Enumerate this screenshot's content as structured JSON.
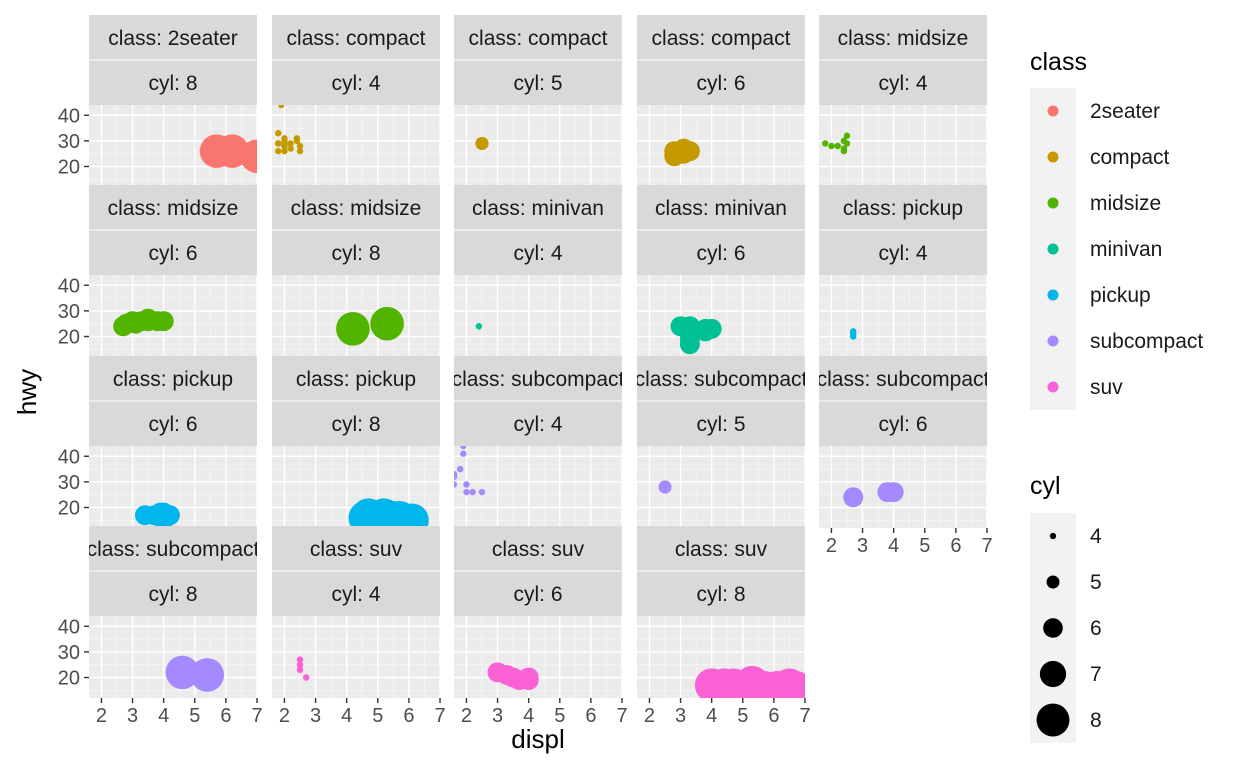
{
  "chart_data": {
    "type": "scatter",
    "facet_by": [
      "class",
      "cyl"
    ],
    "xlabel": "displ",
    "ylabel": "hwy",
    "xlim": [
      1.6,
      7.0
    ],
    "ylim": [
      12,
      44
    ],
    "x_ticks": [
      2,
      3,
      4,
      5,
      6,
      7
    ],
    "y_ticks": [
      20,
      30,
      40
    ],
    "legend_color": {
      "title": "class",
      "entries": [
        {
          "label": "2seater",
          "color": "#F8766D"
        },
        {
          "label": "compact",
          "color": "#C49A00"
        },
        {
          "label": "midsize",
          "color": "#53B400"
        },
        {
          "label": "minivan",
          "color": "#00C094"
        },
        {
          "label": "pickup",
          "color": "#00B6EB"
        },
        {
          "label": "subcompact",
          "color": "#A58AFF"
        },
        {
          "label": "suv",
          "color": "#FB61D7"
        }
      ]
    },
    "legend_size": {
      "title": "cyl",
      "entries": [
        {
          "label": "4",
          "value": 4
        },
        {
          "label": "5",
          "value": 5
        },
        {
          "label": "6",
          "value": 6
        },
        {
          "label": "7",
          "value": 7
        },
        {
          "label": "8",
          "value": 8
        }
      ]
    },
    "panels": [
      {
        "strip_class": "class: 2seater",
        "strip_cyl": "cyl: 8",
        "class": "2seater",
        "cyl": 8,
        "points": [
          [
            5.7,
            26
          ],
          [
            6.2,
            26
          ],
          [
            7.0,
            24
          ]
        ]
      },
      {
        "strip_class": "class: compact",
        "strip_cyl": "cyl: 4",
        "class": "compact",
        "cyl": 4,
        "points": [
          [
            1.8,
            29
          ],
          [
            1.8,
            29
          ],
          [
            2.0,
            31
          ],
          [
            2.0,
            30
          ],
          [
            1.8,
            26
          ],
          [
            2.0,
            28
          ],
          [
            2.0,
            29
          ],
          [
            2.2,
            27
          ],
          [
            2.2,
            29
          ],
          [
            2.4,
            31
          ],
          [
            2.4,
            30
          ],
          [
            1.9,
            44
          ],
          [
            2.0,
            29
          ],
          [
            2.0,
            26
          ],
          [
            2.5,
            26
          ],
          [
            2.5,
            28
          ],
          [
            1.8,
            33
          ],
          [
            1.8,
            29
          ],
          [
            2.0,
            28
          ]
        ]
      },
      {
        "strip_class": "class: compact",
        "strip_cyl": "cyl: 5",
        "class": "compact",
        "cyl": 5,
        "points": [
          [
            2.5,
            29
          ]
        ]
      },
      {
        "strip_class": "class: compact",
        "strip_cyl": "cyl: 6",
        "class": "compact",
        "cyl": 6,
        "points": [
          [
            2.8,
            26
          ],
          [
            3.1,
            27
          ],
          [
            3.0,
            26
          ],
          [
            3.3,
            26
          ],
          [
            2.8,
            24
          ],
          [
            3.1,
            25
          ]
        ]
      },
      {
        "strip_class": "class: midsize",
        "strip_cyl": "cyl: 4",
        "class": "midsize",
        "cyl": 4,
        "points": [
          [
            1.8,
            29
          ],
          [
            2.0,
            28
          ],
          [
            2.4,
            27
          ],
          [
            2.4,
            30
          ],
          [
            2.5,
            32
          ],
          [
            2.2,
            28
          ],
          [
            2.4,
            26
          ],
          [
            2.5,
            29
          ]
        ]
      },
      {
        "strip_class": "class: midsize",
        "strip_cyl": "cyl: 6",
        "class": "midsize",
        "cyl": 6,
        "points": [
          [
            2.8,
            25
          ],
          [
            3.1,
            25
          ],
          [
            3.5,
            26
          ],
          [
            3.8,
            26
          ],
          [
            3.0,
            26
          ],
          [
            3.3,
            26
          ],
          [
            3.5,
            27
          ],
          [
            4.0,
            26
          ],
          [
            2.7,
            24
          ]
        ]
      },
      {
        "strip_class": "class: midsize",
        "strip_cyl": "cyl: 8",
        "class": "midsize",
        "cyl": 8,
        "points": [
          [
            4.2,
            23
          ],
          [
            5.3,
            25
          ]
        ]
      },
      {
        "strip_class": "class: minivan",
        "strip_cyl": "cyl: 4",
        "class": "minivan",
        "cyl": 4,
        "points": [
          [
            2.4,
            24
          ]
        ]
      },
      {
        "strip_class": "class: minivan",
        "strip_cyl": "cyl: 6",
        "class": "minivan",
        "cyl": 6,
        "points": [
          [
            3.0,
            24
          ],
          [
            3.3,
            22
          ],
          [
            3.3,
            24
          ],
          [
            3.8,
            22
          ],
          [
            3.8,
            23
          ],
          [
            4.0,
            23
          ],
          [
            3.3,
            17
          ],
          [
            3.3,
            19
          ]
        ]
      },
      {
        "strip_class": "class: pickup",
        "strip_cyl": "cyl: 4",
        "class": "pickup",
        "cyl": 4,
        "points": [
          [
            2.7,
            20
          ],
          [
            2.7,
            22
          ],
          [
            2.7,
            21
          ]
        ]
      },
      {
        "strip_class": "class: pickup",
        "strip_cyl": "cyl: 6",
        "class": "pickup",
        "cyl": 6,
        "points": [
          [
            3.4,
            17
          ],
          [
            3.7,
            17
          ],
          [
            3.9,
            18
          ],
          [
            4.0,
            18
          ],
          [
            4.2,
            17
          ],
          [
            4.0,
            15
          ]
        ]
      },
      {
        "strip_class": "class: pickup",
        "strip_cyl": "cyl: 8",
        "class": "pickup",
        "cyl": 8,
        "points": [
          [
            4.7,
            17
          ],
          [
            4.7,
            15
          ],
          [
            5.2,
            17
          ],
          [
            5.7,
            16
          ],
          [
            5.9,
            15
          ],
          [
            4.6,
            16
          ],
          [
            5.4,
            15
          ],
          [
            5.0,
            16
          ],
          [
            6.1,
            15
          ],
          [
            5.5,
            16
          ]
        ]
      },
      {
        "strip_class": "class: subcompact",
        "strip_cyl": "cyl: 4",
        "class": "subcompact",
        "cyl": 4,
        "points": [
          [
            1.6,
            32
          ],
          [
            1.6,
            33
          ],
          [
            1.6,
            29
          ],
          [
            1.8,
            35
          ],
          [
            1.9,
            44
          ],
          [
            1.9,
            41
          ],
          [
            2.0,
            29
          ],
          [
            2.0,
            26
          ],
          [
            2.2,
            26
          ],
          [
            2.5,
            26
          ]
        ]
      },
      {
        "strip_class": "class: subcompact",
        "strip_cyl": "cyl: 5",
        "class": "subcompact",
        "cyl": 5,
        "points": [
          [
            2.5,
            28
          ]
        ]
      },
      {
        "strip_class": "class: subcompact",
        "strip_cyl": "cyl: 6",
        "class": "subcompact",
        "cyl": 6,
        "points": [
          [
            2.7,
            24
          ],
          [
            3.8,
            26
          ],
          [
            4.0,
            26
          ]
        ]
      },
      {
        "strip_class": "class: subcompact",
        "strip_cyl": "cyl: 8",
        "class": "subcompact",
        "cyl": 8,
        "points": [
          [
            4.6,
            22
          ],
          [
            5.4,
            21
          ]
        ]
      },
      {
        "strip_class": "class: suv",
        "strip_cyl": "cyl: 4",
        "class": "suv",
        "cyl": 4,
        "points": [
          [
            2.5,
            27
          ],
          [
            2.5,
            25
          ],
          [
            2.5,
            23
          ],
          [
            2.7,
            20
          ]
        ]
      },
      {
        "strip_class": "class: suv",
        "strip_cyl": "cyl: 6",
        "class": "suv",
        "cyl": 6,
        "points": [
          [
            3.0,
            22
          ],
          [
            3.3,
            21
          ],
          [
            4.0,
            19
          ],
          [
            4.0,
            20
          ],
          [
            3.7,
            19
          ],
          [
            3.5,
            20
          ]
        ]
      },
      {
        "strip_class": "class: suv",
        "strip_cyl": "cyl: 8",
        "class": "suv",
        "cyl": 8,
        "points": [
          [
            4.2,
            15
          ],
          [
            4.4,
            17
          ],
          [
            4.6,
            16
          ],
          [
            4.7,
            15
          ],
          [
            5.0,
            16
          ],
          [
            5.3,
            18
          ],
          [
            5.4,
            15
          ],
          [
            5.7,
            16
          ],
          [
            6.0,
            15
          ],
          [
            6.1,
            16
          ],
          [
            6.5,
            17
          ],
          [
            6.7,
            16
          ],
          [
            4.0,
            17
          ],
          [
            4.7,
            17
          ],
          [
            5.2,
            15
          ]
        ]
      }
    ]
  }
}
